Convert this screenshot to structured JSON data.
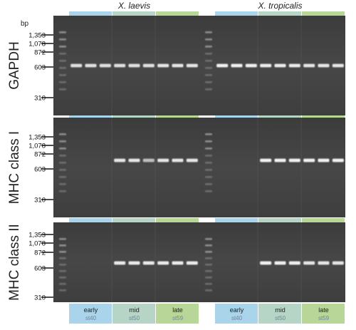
{
  "species": [
    "X. laevis",
    "X. tropicalis"
  ],
  "unit_label": "bp",
  "marker_labels": [
    "1,353",
    "1,078",
    "872",
    "603",
    "310"
  ],
  "panels": [
    {
      "label": "GAPDH",
      "bands": {
        "laevis": [
          0.85,
          0.85,
          0.85,
          0.85,
          0.85,
          0.85,
          0.9,
          0.9,
          0.9
        ],
        "tropicalis": [
          1,
          1,
          1,
          0.95,
          0.95,
          0.95,
          0.9,
          0.9,
          0.9
        ]
      }
    },
    {
      "label": "MHC class I",
      "bands": {
        "laevis": [
          0,
          0,
          0,
          0.9,
          0.9,
          0.55,
          0.9,
          0.9,
          0.9
        ],
        "tropicalis": [
          0,
          0,
          0,
          1,
          1,
          1,
          1,
          1,
          1
        ]
      }
    },
    {
      "label": "MHC class II",
      "bands": {
        "laevis": [
          0,
          0,
          0,
          0.95,
          0.95,
          0.95,
          0.95,
          0.95,
          0.95
        ],
        "tropicalis": [
          0,
          0,
          0,
          1,
          1,
          1,
          0.9,
          0.9,
          0.9
        ]
      }
    }
  ],
  "stages": [
    {
      "name": "early",
      "sub": "st40",
      "color": "#a9d4ea"
    },
    {
      "name": "mid",
      "sub": "st50",
      "color": "#b6d5c6"
    },
    {
      "name": "late",
      "sub": "st59",
      "color": "#b8d698"
    }
  ]
}
